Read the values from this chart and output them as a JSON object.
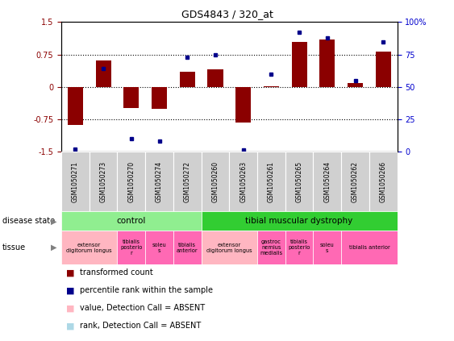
{
  "title": "GDS4843 / 320_at",
  "samples": [
    "GSM1050271",
    "GSM1050273",
    "GSM1050270",
    "GSM1050274",
    "GSM1050272",
    "GSM1050260",
    "GSM1050263",
    "GSM1050261",
    "GSM1050265",
    "GSM1050264",
    "GSM1050262",
    "GSM1050266"
  ],
  "bar_values": [
    -0.88,
    0.62,
    -0.48,
    -0.5,
    0.35,
    0.4,
    -0.82,
    0.02,
    1.05,
    1.1,
    0.1,
    0.82
  ],
  "dot_values": [
    2.0,
    64.0,
    10.0,
    8.0,
    73.0,
    75.0,
    1.5,
    60.0,
    92.0,
    88.0,
    55.0,
    85.0
  ],
  "ylim_left": [
    -1.5,
    1.5
  ],
  "ylim_right": [
    0,
    100
  ],
  "yticks_left": [
    -1.5,
    -0.75,
    0,
    0.75,
    1.5
  ],
  "yticks_left_labels": [
    "-1.5",
    "-0.75",
    "0",
    "0.75",
    "1.5"
  ],
  "yticks_right": [
    0,
    25,
    50,
    75,
    100
  ],
  "yticks_right_labels": [
    "0",
    "25",
    "50",
    "75",
    "100%"
  ],
  "hlines": [
    -0.75,
    0,
    0.75
  ],
  "bar_color": "#8B0000",
  "dot_color": "#00008B",
  "bar_width": 0.55,
  "disease_state_groups": [
    {
      "label": "control",
      "start": 0,
      "end": 5,
      "color": "#90EE90"
    },
    {
      "label": "tibial muscular dystrophy",
      "start": 5,
      "end": 12,
      "color": "#32CD32"
    }
  ],
  "tissue_groups": [
    {
      "label": "extensor\ndigitorum longus",
      "start": 0,
      "end": 2,
      "color": "#FFB6C1"
    },
    {
      "label": "tibialis\nposterio\nr",
      "start": 2,
      "end": 3,
      "color": "#FF69B4"
    },
    {
      "label": "soleu\ns",
      "start": 3,
      "end": 4,
      "color": "#FF69B4"
    },
    {
      "label": "tibialis\nanterior",
      "start": 4,
      "end": 5,
      "color": "#FF69B4"
    },
    {
      "label": "extensor\ndigitorum longus",
      "start": 5,
      "end": 7,
      "color": "#FFB6C1"
    },
    {
      "label": "gastroc\nnemius\nmedialis",
      "start": 7,
      "end": 8,
      "color": "#FF69B4"
    },
    {
      "label": "tibialis\nposterio\nr",
      "start": 8,
      "end": 9,
      "color": "#FF69B4"
    },
    {
      "label": "soleu\ns",
      "start": 9,
      "end": 10,
      "color": "#FF69B4"
    },
    {
      "label": "tibialis anterior",
      "start": 10,
      "end": 12,
      "color": "#FF69B4"
    }
  ],
  "left_label_color": "#8B0000",
  "right_label_color": "#0000CD",
  "legend_colors": [
    "#8B0000",
    "#00008B",
    "#FFB6C1",
    "#ADD8E6"
  ],
  "legend_labels": [
    "transformed count",
    "percentile rank within the sample",
    "value, Detection Call = ABSENT",
    "rank, Detection Call = ABSENT"
  ]
}
